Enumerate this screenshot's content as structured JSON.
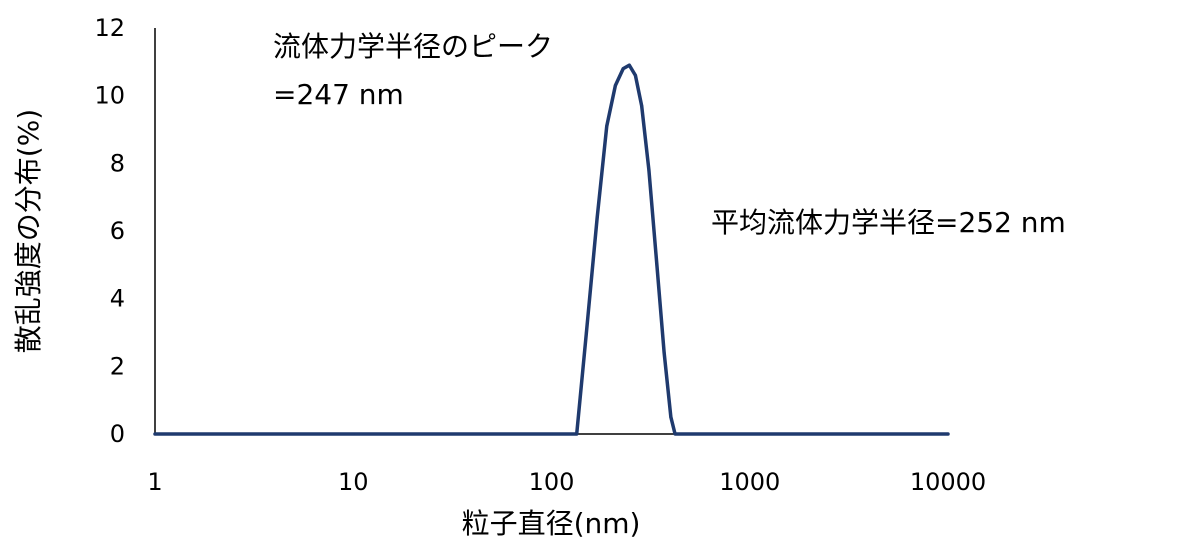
{
  "chart_data": {
    "type": "line",
    "xlabel": "粒子直径(nm)",
    "ylabel": "散乱強度の分布(%)",
    "x_scale": "log",
    "xlim": [
      1,
      10000
    ],
    "ylim": [
      0,
      12
    ],
    "x_ticks": [
      1,
      10,
      100,
      1000,
      10000
    ],
    "x_tick_labels": [
      "1",
      "10",
      "100",
      "1000",
      "10000"
    ],
    "y_ticks": [
      0,
      2,
      4,
      6,
      8,
      10,
      12
    ],
    "y_tick_labels": [
      "0",
      "2",
      "4",
      "6",
      "8",
      "10",
      "12"
    ],
    "grid": false,
    "series": [
      {
        "color": "#1f3a6e",
        "x": [
          1,
          10,
          100,
          134,
          150,
          170,
          190,
          210,
          230,
          247,
          265,
          285,
          310,
          340,
          370,
          400,
          420,
          10000
        ],
        "y": [
          0,
          0,
          0,
          0,
          3.0,
          6.4,
          9.1,
          10.3,
          10.8,
          10.9,
          10.6,
          9.7,
          7.8,
          5.0,
          2.4,
          0.5,
          0,
          0
        ]
      }
    ],
    "annotations": [
      {
        "key": "peak",
        "lines": [
          "流体力学半径のピーク",
          "=247 nm"
        ]
      },
      {
        "key": "mean",
        "lines": [
          "平均流体力学半径=252 nm"
        ]
      }
    ]
  },
  "colors": {
    "line": "#1f3a6e",
    "axis": "#000000"
  }
}
